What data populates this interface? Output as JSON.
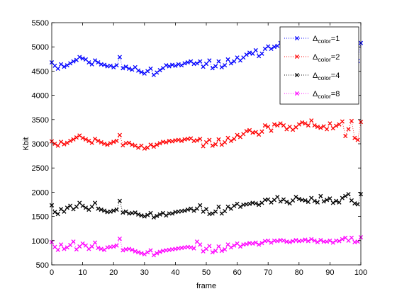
{
  "chart_data": {
    "type": "scatter",
    "title": "",
    "xlabel": "frame",
    "ylabel": "Kbit",
    "xlim": [
      0,
      100
    ],
    "ylim": [
      500,
      5500
    ],
    "xticks": [
      0,
      10,
      20,
      30,
      40,
      50,
      60,
      70,
      80,
      90,
      100
    ],
    "yticks": [
      500,
      1000,
      1500,
      2000,
      2500,
      3000,
      3500,
      4000,
      4500,
      5000,
      5500
    ],
    "grid": false,
    "legend_position": "top-right",
    "series": [
      {
        "legend_base": "Δ",
        "legend_sub": "color",
        "legend_value": "=1",
        "color": "#0000ff",
        "x": [
          0,
          1,
          2,
          3,
          4,
          5,
          6,
          7,
          8,
          9,
          10,
          11,
          12,
          13,
          14,
          15,
          16,
          17,
          18,
          19,
          20,
          21,
          22,
          23,
          24,
          25,
          26,
          27,
          28,
          29,
          30,
          31,
          32,
          33,
          34,
          35,
          36,
          37,
          38,
          39,
          40,
          41,
          42,
          43,
          44,
          45,
          46,
          47,
          48,
          49,
          50,
          51,
          52,
          53,
          54,
          55,
          56,
          57,
          58,
          59,
          60,
          61,
          62,
          63,
          64,
          65,
          66,
          67,
          68,
          69,
          70,
          71,
          72,
          73,
          74,
          75,
          76,
          77,
          78,
          79,
          80,
          81,
          82,
          83,
          84,
          85,
          86,
          87,
          88,
          89,
          90,
          91,
          92,
          93,
          94,
          95,
          96,
          97,
          98,
          99,
          100
        ],
        "y": [
          4680,
          4610,
          4550,
          4640,
          4590,
          4620,
          4660,
          4700,
          4730,
          4790,
          4760,
          4740,
          4680,
          4640,
          4720,
          4680,
          4640,
          4630,
          4600,
          4610,
          4580,
          4620,
          4790,
          4560,
          4590,
          4550,
          4530,
          4580,
          4510,
          4480,
          4450,
          4500,
          4550,
          4420,
          4470,
          4520,
          4560,
          4620,
          4600,
          4630,
          4610,
          4640,
          4620,
          4660,
          4680,
          4700,
          4650,
          4660,
          4700,
          4590,
          4650,
          4720,
          4560,
          4600,
          4700,
          4580,
          4620,
          4740,
          4660,
          4700,
          4780,
          4720,
          4780,
          4840,
          4880,
          4860,
          4930,
          4810,
          4860,
          4960,
          5010,
          4960,
          5000,
          5020,
          5080,
          4950,
          4780,
          5060,
          4920,
          4840,
          4970,
          5020,
          4950,
          4840,
          5040,
          5080,
          4920,
          4840,
          5000,
          4820,
          4990,
          4760,
          4880,
          4930,
          5100,
          4850,
          4920,
          4850,
          4970,
          4710,
          5080
        ]
      },
      {
        "legend_base": "Δ",
        "legend_sub": "color",
        "legend_value": "=2",
        "color": "#ff0000",
        "x": [
          0,
          1,
          2,
          3,
          4,
          5,
          6,
          7,
          8,
          9,
          10,
          11,
          12,
          13,
          14,
          15,
          16,
          17,
          18,
          19,
          20,
          21,
          22,
          23,
          24,
          25,
          26,
          27,
          28,
          29,
          30,
          31,
          32,
          33,
          34,
          35,
          36,
          37,
          38,
          39,
          40,
          41,
          42,
          43,
          44,
          45,
          46,
          47,
          48,
          49,
          50,
          51,
          52,
          53,
          54,
          55,
          56,
          57,
          58,
          59,
          60,
          61,
          62,
          63,
          64,
          65,
          66,
          67,
          68,
          69,
          70,
          71,
          72,
          73,
          74,
          75,
          76,
          77,
          78,
          79,
          80,
          81,
          82,
          83,
          84,
          85,
          86,
          87,
          88,
          89,
          90,
          91,
          92,
          93,
          94,
          95,
          96,
          97,
          98,
          99,
          100
        ],
        "y": [
          3050,
          3000,
          2960,
          3040,
          2990,
          3020,
          3060,
          3090,
          3130,
          3170,
          3120,
          3090,
          3060,
          3020,
          3100,
          3060,
          3030,
          3000,
          2980,
          3010,
          3040,
          3060,
          3180,
          2970,
          3010,
          3020,
          2980,
          2960,
          2920,
          2960,
          2900,
          2920,
          2980,
          2940,
          2980,
          3010,
          3040,
          3030,
          3060,
          3050,
          3070,
          3080,
          3060,
          3090,
          3100,
          3110,
          3060,
          3070,
          3100,
          2950,
          3030,
          3080,
          2960,
          2990,
          3090,
          2980,
          3030,
          3120,
          3060,
          3100,
          3180,
          3140,
          3200,
          3260,
          3280,
          3230,
          3240,
          3190,
          3250,
          3380,
          3350,
          3270,
          3400,
          3380,
          3420,
          3380,
          3300,
          3350,
          3290,
          3340,
          3400,
          3440,
          3420,
          3380,
          3480,
          3380,
          3350,
          3330,
          3360,
          3300,
          3420,
          3320,
          3370,
          3400,
          3460,
          3160,
          3300,
          3470,
          3120,
          3080,
          3450
        ]
      },
      {
        "legend_base": "Δ",
        "legend_sub": "color",
        "legend_value": "=4",
        "color": "#000000",
        "x": [
          0,
          1,
          2,
          3,
          4,
          5,
          6,
          7,
          8,
          9,
          10,
          11,
          12,
          13,
          14,
          15,
          16,
          17,
          18,
          19,
          20,
          21,
          22,
          23,
          24,
          25,
          26,
          27,
          28,
          29,
          30,
          31,
          32,
          33,
          34,
          35,
          36,
          37,
          38,
          39,
          40,
          41,
          42,
          43,
          44,
          45,
          46,
          47,
          48,
          49,
          50,
          51,
          52,
          53,
          54,
          55,
          56,
          57,
          58,
          59,
          60,
          61,
          62,
          63,
          64,
          65,
          66,
          67,
          68,
          69,
          70,
          71,
          72,
          73,
          74,
          75,
          76,
          77,
          78,
          79,
          80,
          81,
          82,
          83,
          84,
          85,
          86,
          87,
          88,
          89,
          90,
          91,
          92,
          93,
          94,
          95,
          96,
          97,
          98,
          99,
          100
        ],
        "y": [
          1730,
          1590,
          1550,
          1650,
          1600,
          1680,
          1720,
          1650,
          1700,
          1780,
          1720,
          1680,
          1640,
          1700,
          1780,
          1660,
          1640,
          1620,
          1590,
          1600,
          1620,
          1640,
          1820,
          1580,
          1600,
          1560,
          1570,
          1580,
          1540,
          1520,
          1500,
          1530,
          1570,
          1480,
          1510,
          1540,
          1570,
          1520,
          1560,
          1560,
          1590,
          1600,
          1610,
          1620,
          1640,
          1660,
          1620,
          1660,
          1730,
          1600,
          1650,
          1550,
          1560,
          1600,
          1700,
          1560,
          1610,
          1700,
          1660,
          1720,
          1760,
          1700,
          1740,
          1750,
          1760,
          1780,
          1770,
          1740,
          1780,
          1840,
          1850,
          1790,
          1840,
          1900,
          1810,
          1850,
          1800,
          1770,
          1830,
          1900,
          1860,
          1840,
          1830,
          1800,
          1880,
          1820,
          1790,
          1920,
          1810,
          1840,
          1870,
          1780,
          1820,
          1790,
          1880,
          1920,
          1960,
          1830,
          1770,
          1750,
          1960
        ]
      },
      {
        "legend_base": "Δ",
        "legend_sub": "color",
        "legend_value": "=8",
        "color": "#ff00ff",
        "x": [
          0,
          1,
          2,
          3,
          4,
          5,
          6,
          7,
          8,
          9,
          10,
          11,
          12,
          13,
          14,
          15,
          16,
          17,
          18,
          19,
          20,
          21,
          22,
          23,
          24,
          25,
          26,
          27,
          28,
          29,
          30,
          31,
          32,
          33,
          34,
          35,
          36,
          37,
          38,
          39,
          40,
          41,
          42,
          43,
          44,
          45,
          46,
          47,
          48,
          49,
          50,
          51,
          52,
          53,
          54,
          55,
          56,
          57,
          58,
          59,
          60,
          61,
          62,
          63,
          64,
          65,
          66,
          67,
          68,
          69,
          70,
          71,
          72,
          73,
          74,
          75,
          76,
          77,
          78,
          79,
          80,
          81,
          82,
          83,
          84,
          85,
          86,
          87,
          88,
          89,
          90,
          91,
          92,
          93,
          94,
          95,
          96,
          97,
          98,
          99,
          100
        ],
        "y": [
          970,
          870,
          810,
          920,
          830,
          860,
          910,
          980,
          820,
          880,
          940,
          900,
          830,
          880,
          960,
          850,
          830,
          810,
          860,
          870,
          880,
          900,
          1040,
          800,
          820,
          830,
          810,
          780,
          760,
          740,
          720,
          760,
          800,
          700,
          740,
          770,
          790,
          800,
          810,
          820,
          830,
          840,
          850,
          860,
          870,
          860,
          840,
          980,
          920,
          780,
          830,
          890,
          760,
          790,
          880,
          790,
          820,
          920,
          860,
          900,
          940,
          880,
          920,
          930,
          950,
          940,
          960,
          920,
          950,
          990,
          1000,
          960,
          1000,
          990,
          1010,
          1000,
          980,
          970,
          990,
          1010,
          990,
          1000,
          1020,
          990,
          1030,
          1000,
          970,
          1010,
          980,
          980,
          1000,
          960,
          1000,
          990,
          1030,
          1060,
          1000,
          1060,
          970,
          980,
          1070
        ]
      }
    ]
  }
}
